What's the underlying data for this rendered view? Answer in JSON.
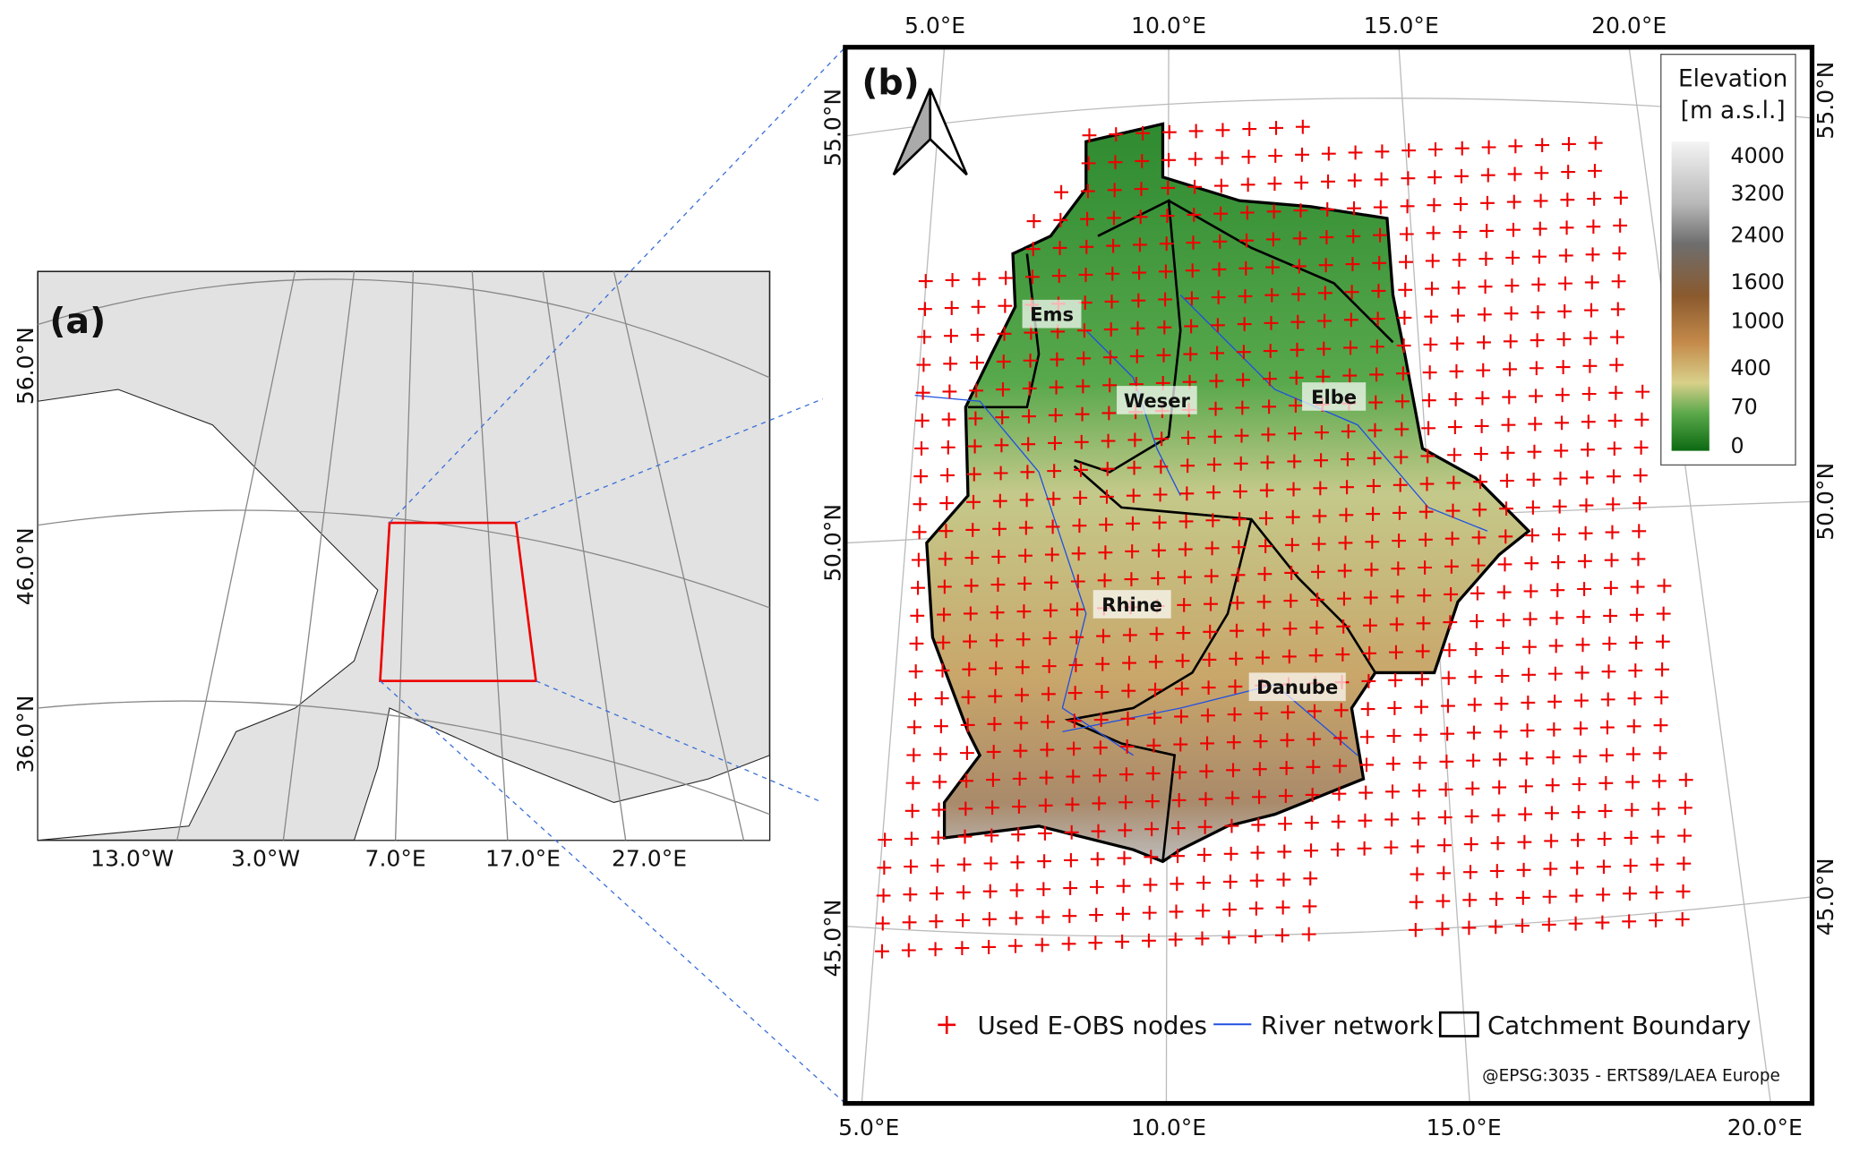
{
  "panel_a": {
    "label": "(a)",
    "lat_labels": [
      "56.0°N",
      "46.0°N",
      "36.0°N"
    ],
    "lon_labels": [
      "13.0°W",
      "3.0°W",
      "7.0°E",
      "17.0°E",
      "27.0°E"
    ]
  },
  "panel_b": {
    "label": "(b)",
    "top_lon_labels": [
      "5.0°E",
      "10.0°E",
      "15.0°E",
      "20.0°E"
    ],
    "bottom_lon_labels": [
      "5.0°E",
      "10.0°E",
      "15.0°E",
      "20.0°E"
    ],
    "left_lat_labels": [
      "55.0°N",
      "50.0°N",
      "45.0°N"
    ],
    "right_lat_labels": [
      "55.0°N",
      "50.0°N",
      "45.0°N"
    ],
    "catchments": [
      "Ems",
      "Weser",
      "Elbe",
      "Rhine",
      "Danube"
    ],
    "elevation_legend": {
      "title": "Elevation",
      "unit": "[m a.s.l.]",
      "ticks": [
        4000,
        3200,
        2400,
        1600,
        1000,
        400,
        70,
        0
      ]
    },
    "legend": [
      "Used E-OBS nodes",
      "River network",
      "Catchment Boundary"
    ],
    "credit": "@EPSG:3035 - ERTS89/LAEA Europe"
  }
}
